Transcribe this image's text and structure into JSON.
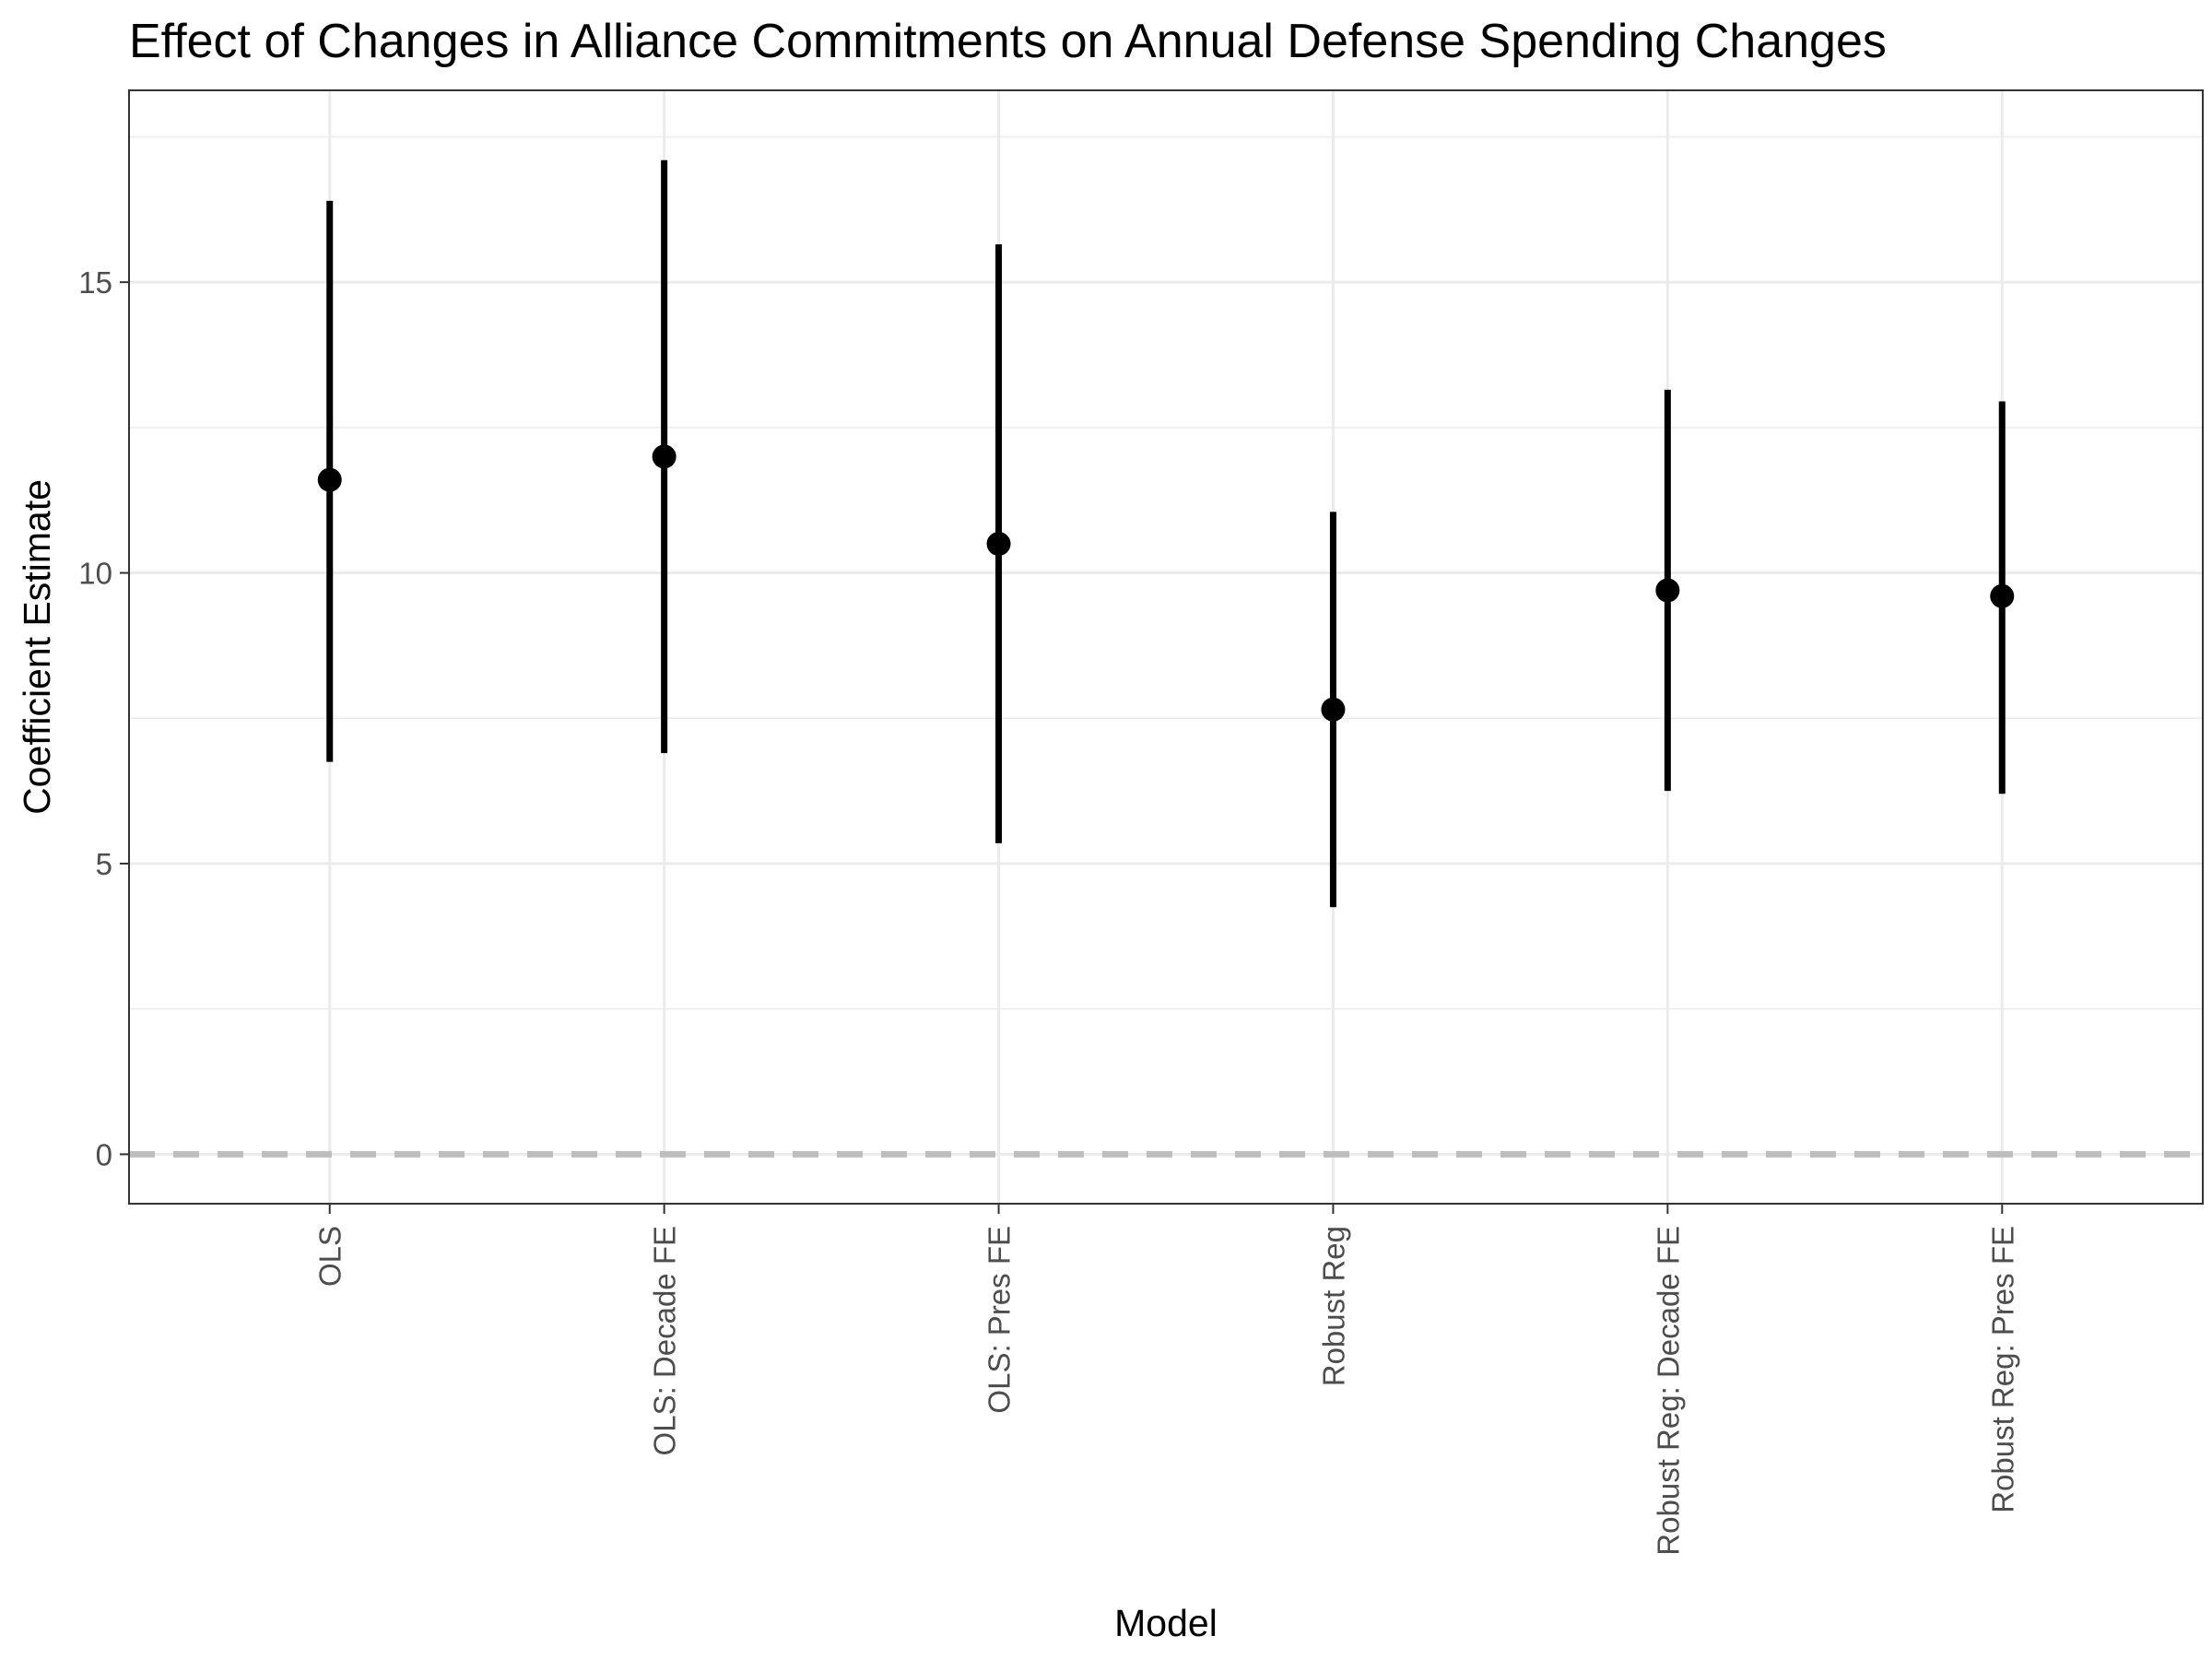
{
  "chart_data": {
    "type": "scatter",
    "title": "Effect of Changes in Alliance Commitments on Annual Defense Spending Changes",
    "xlabel": "Model",
    "ylabel": "Coefficient Estimate",
    "categories": [
      "OLS",
      "OLS: Decade FE",
      "OLS: Pres FE",
      "Robust Reg",
      "Robust Reg: Decade FE",
      "Robust Reg: Pres FE"
    ],
    "series": [
      {
        "estimates": [
          11.6,
          12.0,
          10.5,
          7.65,
          9.7,
          9.6
        ],
        "lower": [
          6.75,
          6.9,
          5.35,
          4.25,
          6.25,
          6.2
        ],
        "upper": [
          16.4,
          17.1,
          15.65,
          11.05,
          13.15,
          12.95
        ]
      }
    ],
    "y_ticks": [
      0,
      5,
      10,
      15
    ],
    "ylim": [
      -0.85,
      18.3
    ],
    "reference_line": {
      "y": 0,
      "style": "dashed",
      "color": "#bebebe"
    },
    "grid": true,
    "legend": "none",
    "colors": {
      "marks": "#000000",
      "grid": "#ebebeb",
      "panel_border": "#333333"
    }
  }
}
